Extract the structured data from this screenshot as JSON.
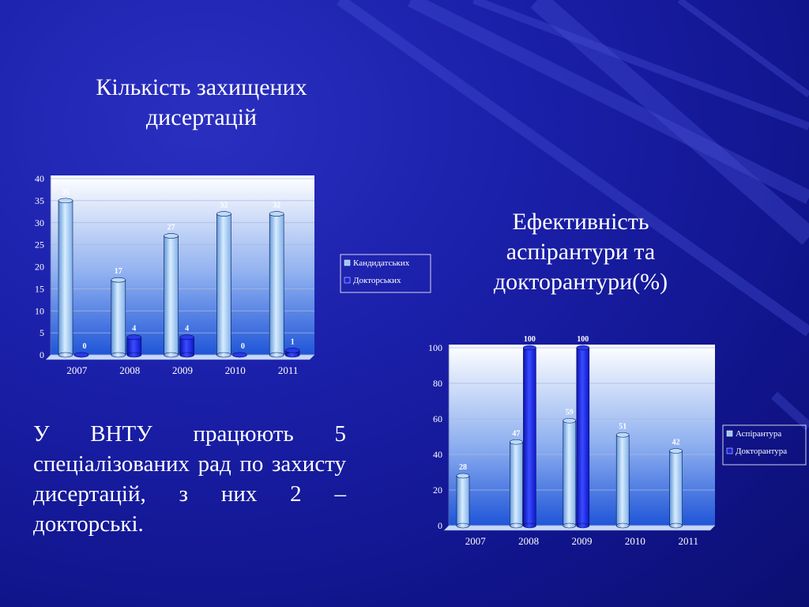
{
  "slide": {
    "title_left": [
      "Кількість захищених",
      "дисертацій"
    ],
    "title_right": [
      "Ефективність",
      "аспірантури та",
      "докторантури(%)"
    ],
    "body_text": "У ВНТУ працюють 5 спеціалізованих рад по захисту дисертацій, з них 2 – докторські."
  },
  "colors": {
    "background": "#1a1fa8",
    "series_light": "#9ec8f0",
    "series_dark": "#1a22d8"
  },
  "chart_data": [
    {
      "type": "bar",
      "title": "Кількість захищених дисертацій",
      "categories": [
        "2007",
        "2008",
        "2009",
        "2010",
        "2011"
      ],
      "series": [
        {
          "name": "Кандидатських",
          "values": [
            35,
            17,
            27,
            32,
            32
          ]
        },
        {
          "name": "Докторських",
          "values": [
            0,
            4,
            4,
            0,
            1
          ]
        }
      ],
      "ylim": [
        0,
        40
      ],
      "yticks": [
        0,
        5,
        10,
        15,
        20,
        25,
        30,
        35,
        40
      ],
      "grid": true,
      "legend": "right"
    },
    {
      "type": "bar",
      "title": "Ефективність аспірантури та докторантури(%)",
      "categories": [
        "2007",
        "2008",
        "2009",
        "2010",
        "2011"
      ],
      "series": [
        {
          "name": "Аспірантура",
          "values": [
            28,
            47,
            59,
            51,
            42
          ]
        },
        {
          "name": "Докторантура",
          "values": [
            null,
            100,
            100,
            null,
            null
          ]
        }
      ],
      "ylim": [
        0,
        100
      ],
      "yticks": [
        0,
        20,
        40,
        60,
        80,
        100
      ],
      "grid": true,
      "legend": "right"
    }
  ]
}
